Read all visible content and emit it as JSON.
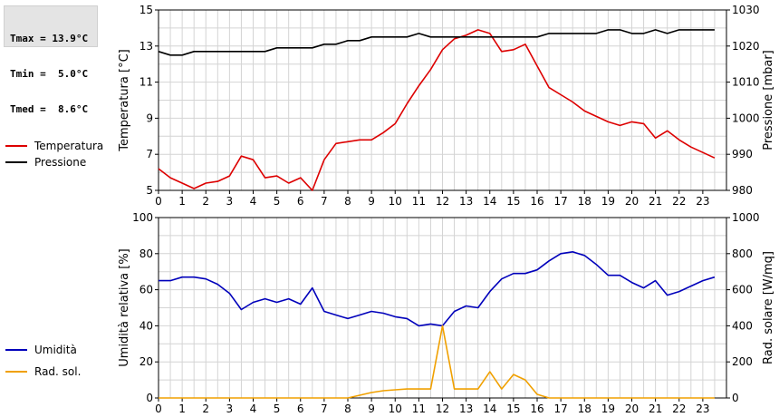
{
  "stats": {
    "tmax": "Tmax = 13.9°C",
    "tmin": "Tmin =  5.0°C",
    "tmed": "Tmed =  8.6°C"
  },
  "chart_data": [
    {
      "type": "line",
      "x_ticks": [
        "0",
        "1",
        "2",
        "3",
        "4",
        "5",
        "6",
        "7",
        "8",
        "9",
        "10",
        "11",
        "12",
        "13",
        "14",
        "15",
        "16",
        "17",
        "18",
        "19",
        "20",
        "21",
        "22",
        "23"
      ],
      "xlim": [
        0,
        24
      ],
      "ylabel_left": "Temperatura [°C]",
      "ylim_left": [
        5,
        15
      ],
      "yticks_left": [
        "5",
        "7",
        "9",
        "11",
        "13",
        "15"
      ],
      "ylabel_right": "Pressione [mbar]",
      "ylim_right": [
        980,
        1030
      ],
      "yticks_right": [
        "980",
        "990",
        "1000",
        "1010",
        "1020",
        "1030"
      ],
      "grid": true,
      "legend_position": "left",
      "series": [
        {
          "name": "Temperatura",
          "axis": "left",
          "color": "#dd0000",
          "x": [
            0,
            0.5,
            1,
            1.5,
            2,
            2.5,
            3,
            3.5,
            4,
            4.5,
            5,
            5.5,
            6,
            6.5,
            7,
            7.5,
            8,
            8.5,
            9,
            9.5,
            10,
            10.5,
            11,
            11.5,
            12,
            12.5,
            13,
            13.5,
            14,
            14.5,
            15,
            15.5,
            16,
            16.5,
            17,
            17.5,
            18,
            18.5,
            19,
            19.5,
            20,
            20.5,
            21,
            21.5,
            22,
            22.5,
            23,
            23.5
          ],
          "y": [
            6.2,
            5.7,
            5.4,
            5.1,
            5.4,
            5.5,
            5.8,
            6.9,
            6.7,
            5.7,
            5.8,
            5.4,
            5.7,
            5.0,
            6.7,
            7.6,
            7.7,
            7.8,
            7.8,
            8.2,
            8.7,
            9.8,
            10.8,
            11.7,
            12.8,
            13.4,
            13.6,
            13.9,
            13.7,
            12.7,
            12.8,
            13.1,
            11.9,
            10.7,
            10.3,
            9.9,
            9.4,
            9.1,
            8.8,
            8.6,
            8.8,
            8.7,
            7.9,
            8.3,
            7.8,
            7.4,
            7.1,
            6.8
          ]
        },
        {
          "name": "Pressione",
          "axis": "right",
          "color": "#000000",
          "x": [
            0,
            0.5,
            1,
            1.5,
            2,
            2.5,
            3,
            3.5,
            4,
            4.5,
            5,
            5.5,
            6,
            6.5,
            7,
            7.5,
            8,
            8.5,
            9,
            9.5,
            10,
            10.5,
            11,
            11.5,
            12,
            12.5,
            13,
            13.5,
            14,
            14.5,
            15,
            15.5,
            16,
            16.5,
            17,
            17.5,
            18,
            18.5,
            19,
            19.5,
            20,
            20.5,
            21,
            21.5,
            22,
            22.5,
            23,
            23.5
          ],
          "y": [
            1018.5,
            1017.5,
            1017.5,
            1018.5,
            1018.5,
            1018.5,
            1018.5,
            1018.5,
            1018.5,
            1018.5,
            1019.5,
            1019.5,
            1019.5,
            1019.5,
            1020.5,
            1020.5,
            1021.5,
            1021.5,
            1022.5,
            1022.5,
            1022.5,
            1022.5,
            1023.5,
            1022.5,
            1022.5,
            1022.5,
            1022.5,
            1022.5,
            1022.5,
            1022.5,
            1022.5,
            1022.5,
            1022.5,
            1023.5,
            1023.5,
            1023.5,
            1023.5,
            1023.5,
            1024.5,
            1024.5,
            1023.5,
            1023.5,
            1024.5,
            1023.5,
            1024.5,
            1024.5,
            1024.5,
            1024.5
          ]
        }
      ]
    },
    {
      "type": "line",
      "x_ticks": [
        "0",
        "1",
        "2",
        "3",
        "4",
        "5",
        "6",
        "7",
        "8",
        "9",
        "10",
        "11",
        "12",
        "13",
        "14",
        "15",
        "16",
        "17",
        "18",
        "19",
        "20",
        "21",
        "22",
        "23"
      ],
      "xlim": [
        0,
        24
      ],
      "ylabel_left": "Umidità relativa [%]",
      "ylim_left": [
        0,
        100
      ],
      "yticks_left": [
        "0",
        "20",
        "40",
        "60",
        "80",
        "100"
      ],
      "ylabel_right": "Rad. solare [W/mq]",
      "ylim_right": [
        0,
        1000
      ],
      "yticks_right": [
        "0",
        "200",
        "400",
        "600",
        "800",
        "1000"
      ],
      "grid": true,
      "legend_position": "left",
      "series": [
        {
          "name": "Umidità",
          "axis": "left",
          "color": "#0000bb",
          "x": [
            0,
            0.5,
            1,
            1.5,
            2,
            2.5,
            3,
            3.5,
            4,
            4.5,
            5,
            5.5,
            6,
            6.5,
            7,
            7.5,
            8,
            8.5,
            9,
            9.5,
            10,
            10.5,
            11,
            11.5,
            12,
            12.5,
            13,
            13.5,
            14,
            14.5,
            15,
            15.5,
            16,
            16.5,
            17,
            17.5,
            18,
            18.5,
            19,
            19.5,
            20,
            20.5,
            21,
            21.5,
            22,
            22.5,
            23,
            23.5
          ],
          "y": [
            65,
            65,
            67,
            67,
            66,
            63,
            58,
            49,
            53,
            55,
            53,
            55,
            52,
            61,
            48,
            46,
            44,
            46,
            48,
            47,
            45,
            44,
            40,
            41,
            40,
            48,
            51,
            50,
            59,
            66,
            69,
            69,
            71,
            76,
            80,
            81,
            79,
            74,
            68,
            68,
            64,
            61,
            65,
            57,
            59,
            62,
            65,
            67
          ]
        },
        {
          "name": "Rad. sol.",
          "axis": "right",
          "color": "#f0a000",
          "x": [
            0,
            0.5,
            1,
            1.5,
            2,
            2.5,
            3,
            3.5,
            4,
            4.5,
            5,
            5.5,
            6,
            6.5,
            7,
            7.5,
            8,
            8.5,
            9,
            9.5,
            10,
            10.5,
            11,
            11.5,
            12,
            12.5,
            13,
            13.5,
            14,
            14.5,
            15,
            15.5,
            16,
            16.5,
            17,
            17.5,
            18,
            18.5,
            19,
            19.5,
            20,
            20.5,
            21,
            21.5,
            22,
            22.5,
            23,
            23.5
          ],
          "y": [
            0,
            0,
            0,
            0,
            0,
            0,
            0,
            0,
            0,
            0,
            0,
            0,
            0,
            0,
            0,
            0,
            0,
            15,
            30,
            40,
            45,
            50,
            50,
            50,
            400,
            50,
            50,
            50,
            145,
            50,
            130,
            100,
            20,
            0,
            0,
            0,
            0,
            0,
            0,
            0,
            0,
            0,
            0,
            0,
            0,
            0,
            0,
            0
          ]
        }
      ]
    }
  ]
}
